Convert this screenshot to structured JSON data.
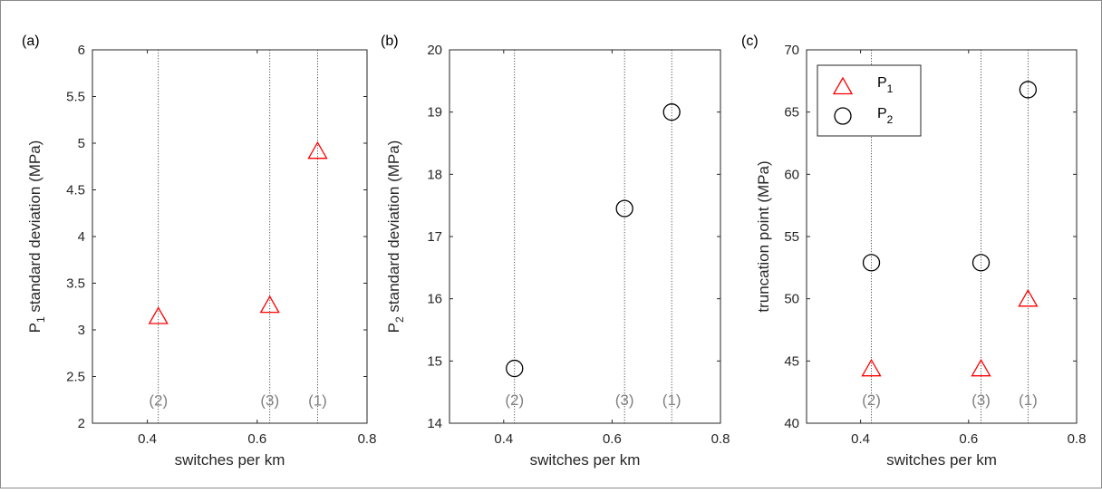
{
  "chart_data": [
    {
      "type": "scatter",
      "panel_label": "(a)",
      "xlabel": "switches per km",
      "ylabel_parts": [
        "P",
        "1",
        " standard deviation (MPa)"
      ],
      "xlim": [
        0.3,
        0.8
      ],
      "ylim": [
        2,
        6
      ],
      "xticks": [
        0.4,
        0.6,
        0.8
      ],
      "yticks": [
        2,
        2.5,
        3,
        3.5,
        4,
        4.5,
        5,
        5.5,
        6
      ],
      "ytick_labels": [
        "2",
        "2.5",
        "3",
        "3.5",
        "4",
        "4.5",
        "5",
        "5.5",
        "6"
      ],
      "vlines": [
        0.42,
        0.623,
        0.71
      ],
      "annotations": [
        {
          "text": "(2)",
          "x": 0.42,
          "y": 2.25
        },
        {
          "text": "(3)",
          "x": 0.623,
          "y": 2.25
        },
        {
          "text": "(1)",
          "x": 0.71,
          "y": 2.25
        }
      ],
      "series": [
        {
          "marker": "triangle",
          "color": "#ff0000",
          "x": [
            0.42,
            0.623,
            0.71
          ],
          "y": [
            3.16,
            3.28,
            4.93
          ]
        }
      ]
    },
    {
      "type": "scatter",
      "panel_label": "(b)",
      "xlabel": "switches per km",
      "ylabel_parts": [
        "P",
        "2",
        " standard deviation (MPa)"
      ],
      "xlim": [
        0.3,
        0.8
      ],
      "ylim": [
        14,
        20
      ],
      "xticks": [
        0.4,
        0.6,
        0.8
      ],
      "yticks": [
        14,
        15,
        16,
        17,
        18,
        19,
        20
      ],
      "ytick_labels": [
        "14",
        "15",
        "16",
        "17",
        "18",
        "19",
        "20"
      ],
      "vlines": [
        0.42,
        0.623,
        0.71
      ],
      "annotations": [
        {
          "text": "(2)",
          "x": 0.42,
          "y": 14.38
        },
        {
          "text": "(3)",
          "x": 0.623,
          "y": 14.38
        },
        {
          "text": "(1)",
          "x": 0.71,
          "y": 14.38
        }
      ],
      "series": [
        {
          "marker": "circle",
          "color": "#000000",
          "x": [
            0.42,
            0.623,
            0.71
          ],
          "y": [
            14.88,
            17.45,
            19.0
          ]
        }
      ]
    },
    {
      "type": "scatter",
      "panel_label": "(c)",
      "xlabel": "switches per km",
      "ylabel_parts": [
        "truncation point (MPa)"
      ],
      "xlim": [
        0.3,
        0.8
      ],
      "ylim": [
        40,
        70
      ],
      "xticks": [
        0.4,
        0.6,
        0.8
      ],
      "yticks": [
        40,
        45,
        50,
        55,
        60,
        65,
        70
      ],
      "ytick_labels": [
        "40",
        "45",
        "50",
        "55",
        "60",
        "65",
        "70"
      ],
      "vlines": [
        0.42,
        0.623,
        0.71
      ],
      "annotations": [
        {
          "text": "(2)",
          "x": 0.42,
          "y": 41.9
        },
        {
          "text": "(3)",
          "x": 0.623,
          "y": 41.9
        },
        {
          "text": "(1)",
          "x": 0.71,
          "y": 41.9
        }
      ],
      "legend": {
        "placement": "top-left",
        "entries": [
          {
            "marker": "triangle",
            "color": "#ff0000",
            "label": "P",
            "sub": "1"
          },
          {
            "marker": "circle",
            "color": "#000000",
            "label": "P",
            "sub": "2"
          }
        ]
      },
      "series": [
        {
          "marker": "triangle",
          "color": "#ff0000",
          "x": [
            0.42,
            0.623,
            0.71
          ],
          "y": [
            44.5,
            44.5,
            50.1
          ]
        },
        {
          "marker": "circle",
          "color": "#000000",
          "x": [
            0.42,
            0.623,
            0.71
          ],
          "y": [
            52.9,
            52.9,
            66.8
          ]
        }
      ]
    }
  ]
}
